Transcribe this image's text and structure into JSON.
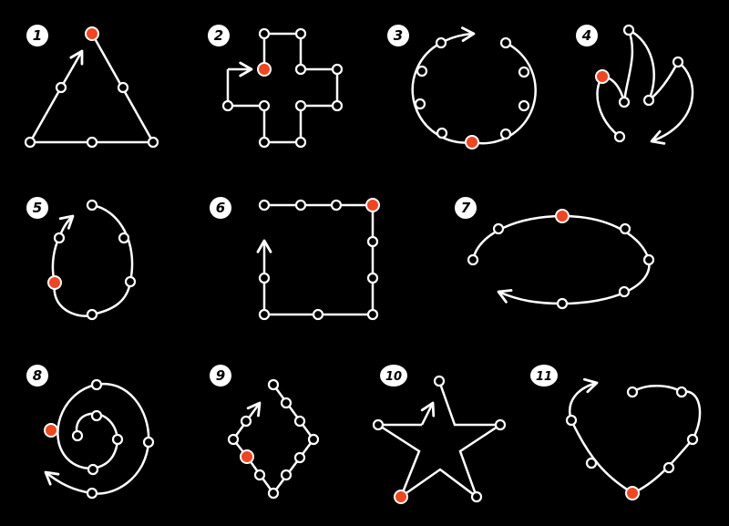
{
  "colors": {
    "background": "#000000",
    "line": "#ffffff",
    "start_point": "#f0451f"
  },
  "figures": [
    {
      "number": "1",
      "shape": "triangle"
    },
    {
      "number": "2",
      "shape": "cross"
    },
    {
      "number": "3",
      "shape": "circle"
    },
    {
      "number": "4",
      "shape": "flame"
    },
    {
      "number": "5",
      "shape": "egg"
    },
    {
      "number": "6",
      "shape": "square"
    },
    {
      "number": "7",
      "shape": "ellipse"
    },
    {
      "number": "8",
      "shape": "spiral"
    },
    {
      "number": "9",
      "shape": "rhombus"
    },
    {
      "number": "10",
      "shape": "star"
    },
    {
      "number": "11",
      "shape": "heart"
    }
  ]
}
